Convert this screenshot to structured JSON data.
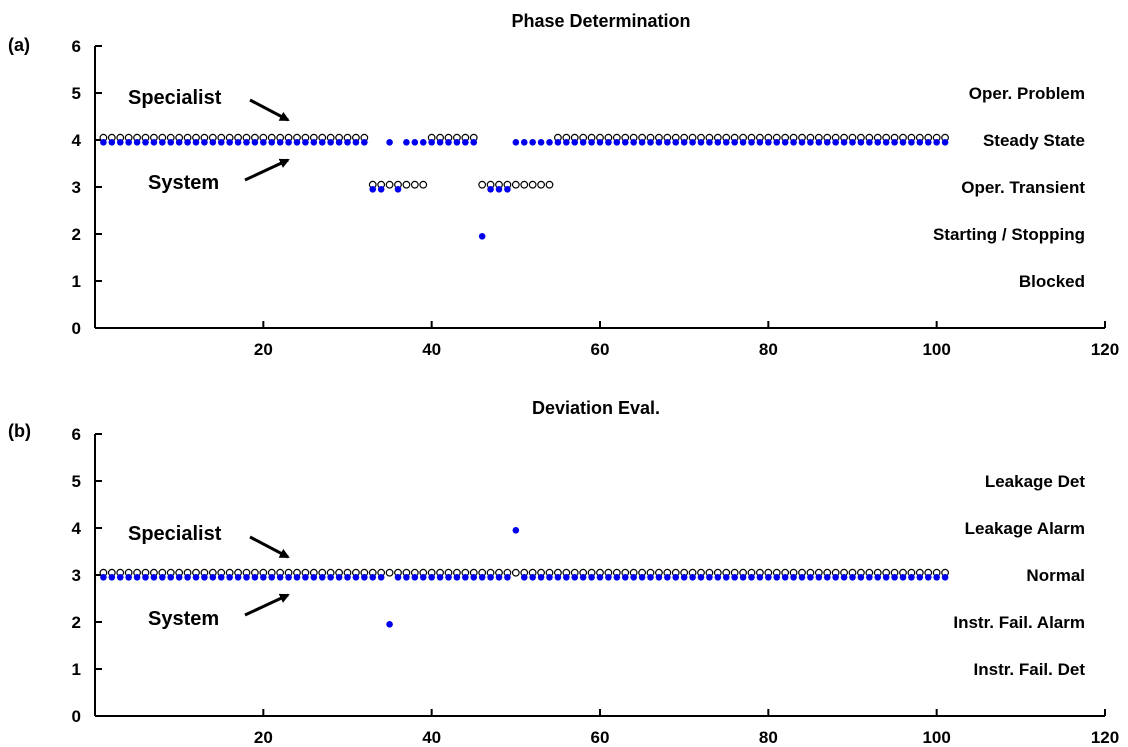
{
  "colors": {
    "specialist_face": "#ffffff",
    "specialist_edge": "#000000",
    "system": "#0000ee",
    "axis": "#000000"
  },
  "chart_data": [
    {
      "type": "scatter",
      "panel_label": "(a)",
      "title": "Phase Determination",
      "xlabel": "",
      "ylabel": "",
      "xlim": [
        0,
        120
      ],
      "ylim": [
        0,
        6
      ],
      "x_ticks": [
        20,
        40,
        60,
        80,
        100,
        120
      ],
      "y_ticks": [
        0,
        1,
        2,
        3,
        4,
        5,
        6
      ],
      "grid": false,
      "category_labels": [
        {
          "y": 5,
          "text": "Oper. Problem"
        },
        {
          "y": 4,
          "text": "Steady State"
        },
        {
          "y": 3,
          "text": "Oper. Transient"
        },
        {
          "y": 2,
          "text": "Starting / Stopping"
        },
        {
          "y": 1,
          "text": "Blocked"
        }
      ],
      "annotations": [
        {
          "text": "Specialist",
          "target_series": "Specialist"
        },
        {
          "text": "System",
          "target_series": "System"
        }
      ],
      "series": [
        {
          "name": "Specialist",
          "marker": "open-circle",
          "runs": [
            {
              "from": 1,
              "to": 32,
              "value": 4
            },
            {
              "from": 33,
              "to": 39,
              "value": 3
            },
            {
              "from": 40,
              "to": 45,
              "value": 4
            },
            {
              "from": 46,
              "to": 54,
              "value": 3
            },
            {
              "from": 55,
              "to": 101,
              "value": 4
            }
          ]
        },
        {
          "name": "System",
          "marker": "filled-circle",
          "runs": [
            {
              "from": 1,
              "to": 32,
              "value": 4
            },
            {
              "from": 33,
              "to": 34,
              "value": 3
            },
            {
              "from": 35,
              "to": 35,
              "value": 4
            },
            {
              "from": 36,
              "to": 36,
              "value": 3
            },
            {
              "from": 37,
              "to": 45,
              "value": 4
            },
            {
              "from": 46,
              "to": 46,
              "value": 2
            },
            {
              "from": 47,
              "to": 49,
              "value": 3
            },
            {
              "from": 50,
              "to": 101,
              "value": 4
            }
          ]
        }
      ]
    },
    {
      "type": "scatter",
      "panel_label": "(b)",
      "title": "Deviation Eval.",
      "xlabel": "",
      "ylabel": "",
      "xlim": [
        0,
        120
      ],
      "ylim": [
        0,
        6
      ],
      "x_ticks": [
        20,
        40,
        60,
        80,
        100,
        120
      ],
      "y_ticks": [
        0,
        1,
        2,
        3,
        4,
        5,
        6
      ],
      "grid": false,
      "category_labels": [
        {
          "y": 5,
          "text": "Leakage Det"
        },
        {
          "y": 4,
          "text": "Leakage Alarm"
        },
        {
          "y": 3,
          "text": "Normal"
        },
        {
          "y": 2,
          "text": "Instr. Fail. Alarm"
        },
        {
          "y": 1,
          "text": "Instr. Fail. Det"
        }
      ],
      "annotations": [
        {
          "text": "Specialist",
          "target_series": "Specialist"
        },
        {
          "text": "System",
          "target_series": "System"
        }
      ],
      "series": [
        {
          "name": "Specialist",
          "marker": "open-circle",
          "runs": [
            {
              "from": 1,
              "to": 101,
              "value": 3
            }
          ]
        },
        {
          "name": "System",
          "marker": "filled-circle",
          "runs": [
            {
              "from": 1,
              "to": 34,
              "value": 3
            },
            {
              "from": 35,
              "to": 35,
              "value": 2
            },
            {
              "from": 36,
              "to": 49,
              "value": 3
            },
            {
              "from": 50,
              "to": 50,
              "value": 4
            },
            {
              "from": 51,
              "to": 101,
              "value": 3
            }
          ]
        }
      ]
    }
  ]
}
